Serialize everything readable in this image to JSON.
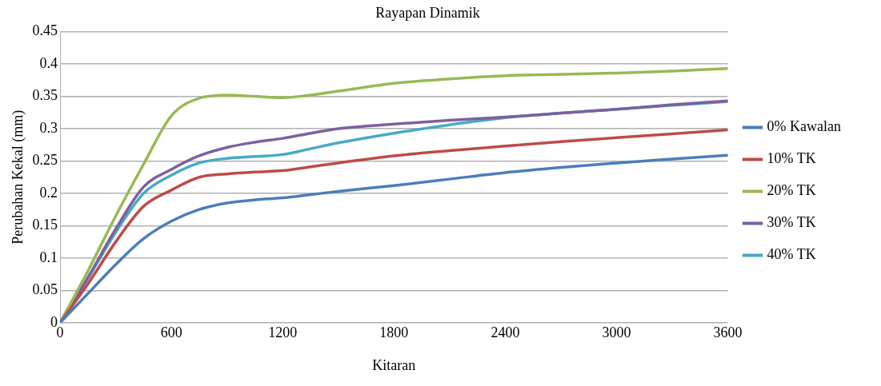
{
  "chart_data": {
    "type": "line",
    "title": "Rayapan Dinamik",
    "xlabel": "Kitaran",
    "ylabel": "Perubahan Kekal (mm)",
    "x": [
      0,
      150,
      300,
      450,
      600,
      750,
      900,
      1050,
      1200,
      1350,
      1500,
      1800,
      2100,
      2400,
      2700,
      3000,
      3300,
      3600
    ],
    "xlim": [
      0,
      3600
    ],
    "xticks": [
      0,
      600,
      1200,
      1800,
      2400,
      3000,
      3600
    ],
    "ylim": [
      0,
      0.45
    ],
    "yticks": [
      0,
      0.05,
      0.1,
      0.15,
      0.2,
      0.25,
      0.3,
      0.35,
      0.4,
      0.45
    ],
    "grid": "y",
    "legend": "right",
    "marker": "none",
    "line_style": "solid",
    "series": [
      {
        "name": "0% Kawalan",
        "color": "#4a7ebb",
        "values": [
          0,
          0.045,
          0.09,
          0.13,
          0.157,
          0.175,
          0.185,
          0.19,
          0.193,
          0.198,
          0.203,
          0.212,
          0.222,
          0.232,
          0.24,
          0.247,
          0.253,
          0.259
        ]
      },
      {
        "name": "10% TK",
        "color": "#be4b48",
        "values": [
          0,
          0.06,
          0.125,
          0.18,
          0.205,
          0.225,
          0.23,
          0.233,
          0.235,
          0.241,
          0.247,
          0.258,
          0.266,
          0.273,
          0.28,
          0.286,
          0.292,
          0.298
        ]
      },
      {
        "name": "20% TK",
        "color": "#98b954",
        "values": [
          0,
          0.08,
          0.165,
          0.245,
          0.32,
          0.347,
          0.352,
          0.35,
          0.348,
          0.352,
          0.358,
          0.37,
          0.377,
          0.382,
          0.384,
          0.386,
          0.389,
          0.393
        ]
      },
      {
        "name": "30% TK",
        "color": "#7d60a0",
        "values": [
          0,
          0.07,
          0.145,
          0.21,
          0.237,
          0.258,
          0.271,
          0.279,
          0.285,
          0.293,
          0.3,
          0.307,
          0.313,
          0.318,
          0.324,
          0.33,
          0.337,
          0.343
        ]
      },
      {
        "name": "40% TK",
        "color": "#46aac5",
        "values": [
          0,
          0.068,
          0.14,
          0.2,
          0.228,
          0.247,
          0.254,
          0.257,
          0.26,
          0.269,
          0.278,
          0.293,
          0.306,
          0.317,
          0.324,
          0.33,
          0.336,
          0.342
        ]
      }
    ]
  }
}
